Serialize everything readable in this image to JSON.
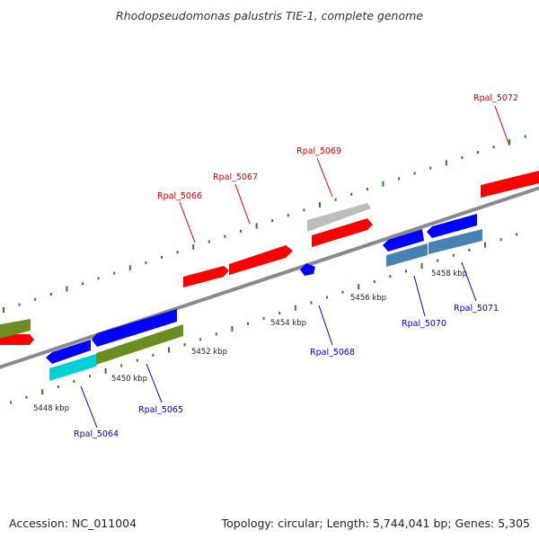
{
  "title": "Rhodopseudomonas palustris TIE-1, complete genome",
  "footer": {
    "accession": "Accession: NC_011004",
    "topology": "Topology: circular; Length: 5,744,041 bp; Genes: 5,305"
  },
  "colors": {
    "backbone": "#8a8a8a",
    "tick": "#2e7d1e",
    "plus_label": "#cc0000",
    "minus_label": "#0000cc",
    "red": "#ff0000",
    "blue": "#0000ff",
    "cyan": "#00d0d8",
    "olive": "#6b8e23",
    "steel": "#4682b4",
    "gray": "#bdbdbd"
  },
  "scale_labels": [
    "5448 kbp",
    "5450 kbp",
    "5452 kbp",
    "5454 kbp",
    "5456 kbp",
    "5458 kbp"
  ],
  "gene_labels": [
    {
      "id": "Rpal_5064",
      "strand": "minus"
    },
    {
      "id": "Rpal_5065",
      "strand": "minus"
    },
    {
      "id": "Rpal_5066",
      "strand": "plus"
    },
    {
      "id": "Rpal_5067",
      "strand": "plus"
    },
    {
      "id": "Rpal_5068",
      "strand": "minus"
    },
    {
      "id": "Rpal_5069",
      "strand": "plus"
    },
    {
      "id": "Rpal_5070",
      "strand": "minus"
    },
    {
      "id": "Rpal_5071",
      "strand": "minus"
    },
    {
      "id": "Rpal_5072",
      "strand": "plus"
    }
  ]
}
